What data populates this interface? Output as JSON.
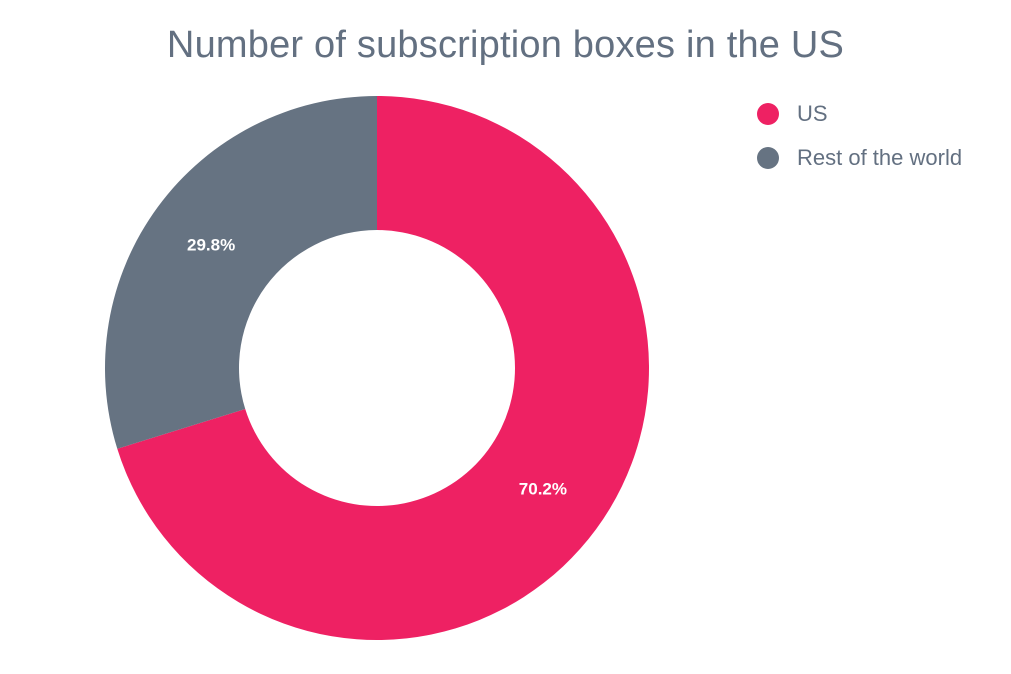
{
  "chart_data": {
    "type": "pie",
    "variant": "donut",
    "title": "Number of subscription boxes in the US",
    "categories": [
      "US",
      "Rest of the world"
    ],
    "values": [
      70.2,
      29.8
    ],
    "data_labels": [
      "70.2%",
      "29.8%"
    ],
    "colors": [
      "#ee2163",
      "#667382"
    ],
    "legend_placement": "top-right",
    "start_angle_deg": 0,
    "direction": "clockwise"
  }
}
